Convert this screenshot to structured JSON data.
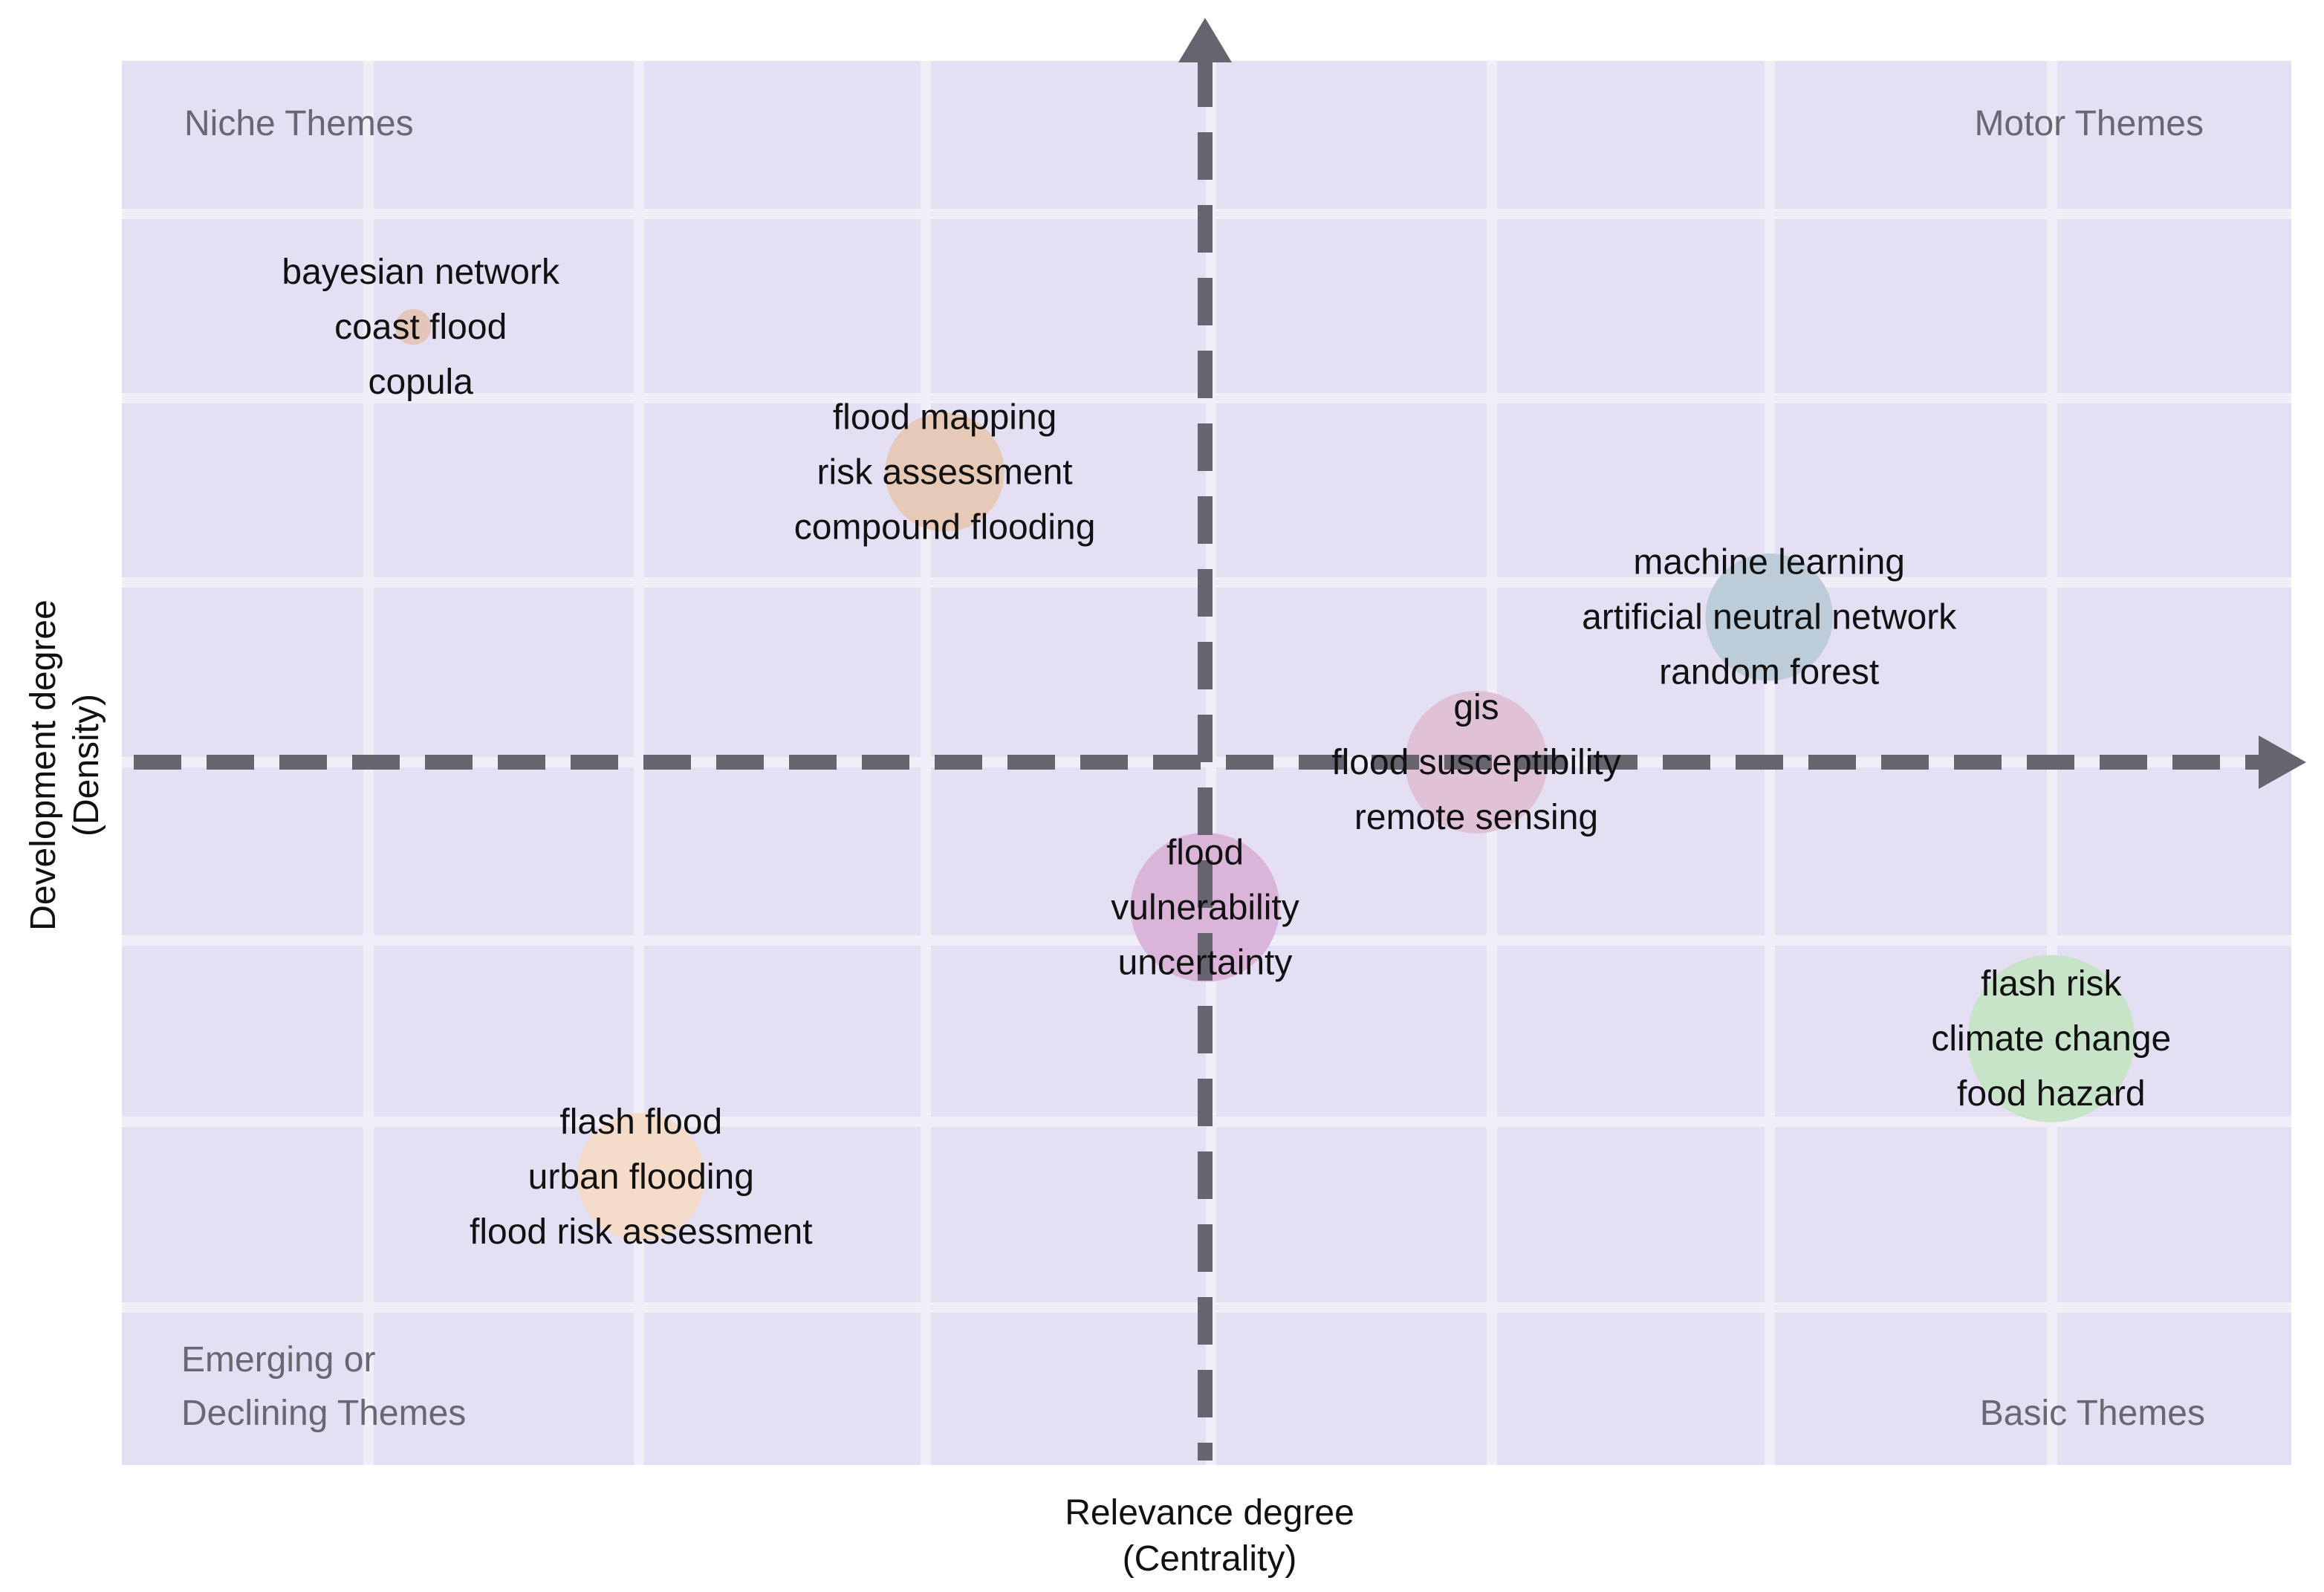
{
  "chart_data": {
    "type": "scatter",
    "subtype": "bubble / strategic thematic map",
    "title": "",
    "xlabel": [
      "Relevance degree",
      "(Centrality)"
    ],
    "ylabel": [
      "Development degree",
      "(Density)"
    ],
    "grid": true,
    "quadrants": {
      "top_left": [
        "Niche Themes"
      ],
      "top_right": [
        "Motor Themes"
      ],
      "bottom_left": [
        "Emerging or",
        "Declining Themes"
      ],
      "bottom_right": [
        "Basic Themes"
      ]
    },
    "background_color": "#e4dff3",
    "axis_color": "#67646f",
    "clusters": [
      {
        "x": -0.73,
        "y": 0.63,
        "size": 1,
        "color": "#e4c6b9",
        "labels": [
          "bayesian network",
          "coast flood",
          "copula"
        ]
      },
      {
        "x": -0.24,
        "y": 0.42,
        "size": 5,
        "color": "#e6c9b6",
        "labels": [
          "flood mapping",
          "risk assessment",
          "compound flooding"
        ]
      },
      {
        "x": 0.52,
        "y": 0.21,
        "size": 6,
        "color": "#bccdd9",
        "labels": [
          "machine learning",
          "artificial  neutral network",
          "random forest"
        ]
      },
      {
        "x": 0.25,
        "y": 0.0,
        "size": 8,
        "color": "#dfc2d5",
        "labels": [
          "gis",
          "flood susceptibility",
          "remote sensing"
        ]
      },
      {
        "x": 0.0,
        "y": -0.21,
        "size": 9,
        "color": "#dbb4da",
        "labels": [
          "flood",
          "vulnerability",
          "uncertainty"
        ]
      },
      {
        "x": 0.78,
        "y": -0.4,
        "size": 12,
        "color": "#c7e4c9",
        "labels": [
          "flash risk",
          "climate change",
          "food hazard"
        ]
      },
      {
        "x": -0.52,
        "y": -0.6,
        "size": 6,
        "color": "#f4dcc9",
        "labels": [
          "flash flood",
          "urban flooding",
          "flood risk assessment"
        ]
      }
    ]
  }
}
